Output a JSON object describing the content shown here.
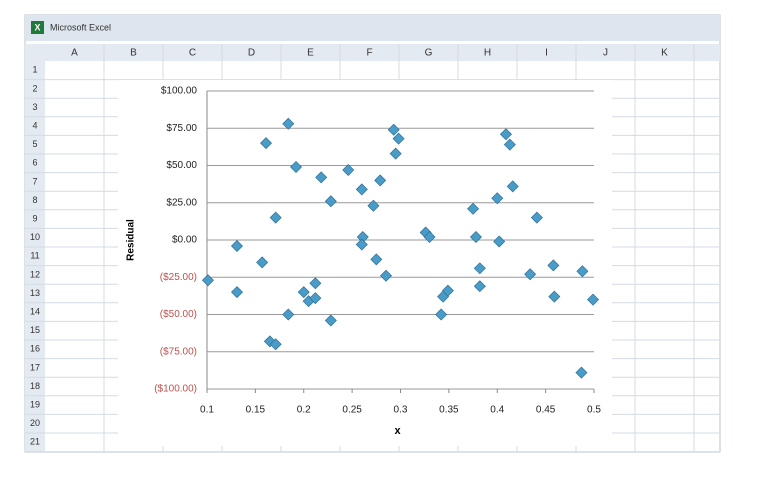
{
  "window_title": "Microsoft Excel",
  "columns": [
    "A",
    "B",
    "C",
    "D",
    "E",
    "F",
    "G",
    "H",
    "I",
    "J",
    "K"
  ],
  "rows": [
    1,
    2,
    3,
    4,
    5,
    6,
    7,
    8,
    9,
    10,
    11,
    12,
    13,
    14,
    15,
    16,
    17,
    18,
    19,
    20,
    21
  ],
  "chart_data": {
    "type": "scatter",
    "x_label": "x",
    "y_label": "Residual",
    "x": [
      0.101,
      0.131,
      0.131,
      0.157,
      0.161,
      0.171,
      0.184,
      0.184,
      0.165,
      0.171,
      0.192,
      0.2,
      0.205,
      0.212,
      0.212,
      0.218,
      0.228,
      0.228,
      0.246,
      0.26,
      0.261,
      0.26,
      0.272,
      0.275,
      0.279,
      0.285,
      0.293,
      0.298,
      0.295,
      0.326,
      0.33,
      0.342,
      0.344,
      0.349,
      0.375,
      0.378,
      0.382,
      0.382,
      0.4,
      0.402,
      0.409,
      0.413,
      0.416,
      0.434,
      0.441,
      0.458,
      0.459,
      0.487,
      0.488,
      0.499
    ],
    "values": [
      -27,
      -4,
      -35,
      -15,
      65,
      15,
      78,
      -50,
      -68,
      -70,
      49,
      -35,
      -41,
      -39,
      -29,
      42,
      26,
      -54,
      47,
      34,
      2,
      -3,
      23,
      -13,
      40,
      -24,
      74,
      68,
      58,
      5,
      2,
      -50,
      -38,
      -34,
      21,
      2,
      -19,
      -31,
      28,
      -1,
      71,
      64,
      36,
      -23,
      15,
      -17,
      -38,
      -89,
      -21,
      -40
    ],
    "color": "#4a9cc8",
    "xlim": [
      0.1,
      0.5
    ],
    "ylim": [
      -100,
      100
    ],
    "xticks": [
      0.1,
      0.15,
      0.2,
      0.25,
      0.3,
      0.35,
      0.4,
      0.45,
      0.5
    ],
    "yticks": [
      {
        "value": -100,
        "label": "($100.00)"
      },
      {
        "value": -75,
        "label": "($75.00)"
      },
      {
        "value": -50,
        "label": "($50.00)"
      },
      {
        "value": -25,
        "label": "($25.00)"
      },
      {
        "value": 0,
        "label": "$0.00"
      },
      {
        "value": 25,
        "label": "$25.00"
      },
      {
        "value": 50,
        "label": "$50.00"
      },
      {
        "value": 75,
        "label": "$75.00"
      },
      {
        "value": 100,
        "label": "$100.00"
      }
    ],
    "grid": true,
    "negative_tick_color": "#c0504d"
  }
}
